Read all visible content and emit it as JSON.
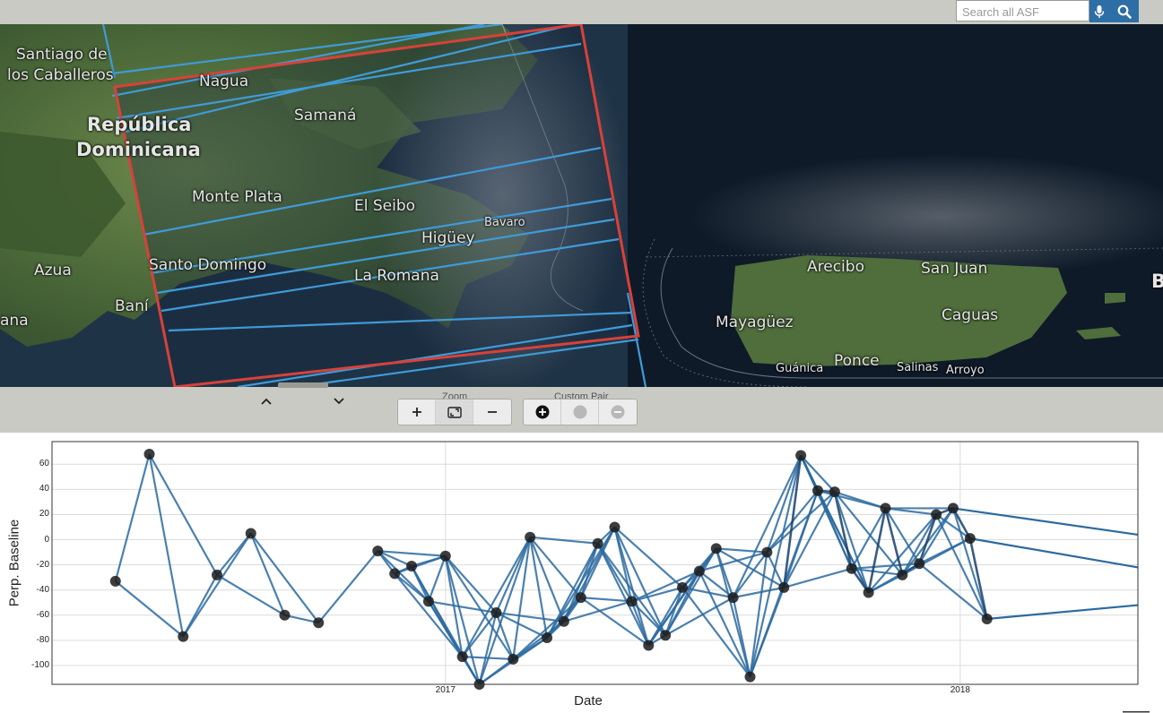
{
  "search": {
    "placeholder": "Search all ASF"
  },
  "map": {
    "labels": [
      {
        "text": "Santiago de",
        "cls": ""
      },
      {
        "text": "los Caballeros",
        "cls": ""
      },
      {
        "text": "Nagua",
        "cls": ""
      },
      {
        "text": "Samaná",
        "cls": ""
      },
      {
        "text": "República",
        "cls": "bold"
      },
      {
        "text": "Dominicana",
        "cls": "bold"
      },
      {
        "text": "Monte Plata",
        "cls": ""
      },
      {
        "text": "El Seibo",
        "cls": ""
      },
      {
        "text": "Bavaro",
        "cls": "small"
      },
      {
        "text": "Higüey",
        "cls": ""
      },
      {
        "text": "Azua",
        "cls": ""
      },
      {
        "text": "Santo Domingo",
        "cls": ""
      },
      {
        "text": "La Romana",
        "cls": ""
      },
      {
        "text": "ana",
        "cls": ""
      },
      {
        "text": "Baní",
        "cls": ""
      },
      {
        "text": "Arecibo",
        "cls": ""
      },
      {
        "text": "San Juan",
        "cls": ""
      },
      {
        "text": "Mayagüez",
        "cls": ""
      },
      {
        "text": "Caguas",
        "cls": ""
      },
      {
        "text": "Guánica",
        "cls": "small"
      },
      {
        "text": "Ponce",
        "cls": ""
      },
      {
        "text": "Salinas",
        "cls": "small"
      },
      {
        "text": "Arroyo",
        "cls": "small"
      },
      {
        "text": "B",
        "cls": "bold"
      }
    ]
  },
  "controls": {
    "zoom_label": "Zoom",
    "custom_pair_label": "Custom Pair",
    "icons": {
      "scroll_up": "chevron-up-icon",
      "scroll_down": "chevron-down-icon",
      "zoom_in": "plus-icon",
      "zoom_extent": "fit-extent-icon",
      "zoom_out": "minus-icon",
      "add_pair": "plus-circle-icon",
      "pair_point": "circle-icon",
      "remove_pair": "minus-circle-icon"
    }
  },
  "chart_data": {
    "type": "scatter",
    "xlabel": "Date",
    "ylabel": "Perp. Baseline",
    "ylim": [
      -115,
      78
    ],
    "xlim": [
      "2016-03-28",
      "2018-05-07"
    ],
    "y_ticks": [
      60,
      40,
      20,
      0,
      -20,
      -40,
      -60,
      -80,
      -100
    ],
    "x_ticks": [
      "2017",
      "2018"
    ],
    "grid": true,
    "colors": {
      "edge": "#2c6aa0",
      "node": "#1b1b1b"
    },
    "points": [
      {
        "date": "2016-05-12",
        "y": -33
      },
      {
        "date": "2016-06-05",
        "y": 68
      },
      {
        "date": "2016-06-29",
        "y": -77
      },
      {
        "date": "2016-07-23",
        "y": -28
      },
      {
        "date": "2016-08-16",
        "y": 5
      },
      {
        "date": "2016-09-09",
        "y": -60
      },
      {
        "date": "2016-10-03",
        "y": -66
      },
      {
        "date": "2016-11-14",
        "y": -9
      },
      {
        "date": "2016-11-26",
        "y": -27
      },
      {
        "date": "2016-12-08",
        "y": -21
      },
      {
        "date": "2016-12-20",
        "y": -49
      },
      {
        "date": "2017-01-01",
        "y": -13
      },
      {
        "date": "2017-01-13",
        "y": -93
      },
      {
        "date": "2017-01-25",
        "y": -115
      },
      {
        "date": "2017-02-06",
        "y": -58
      },
      {
        "date": "2017-02-18",
        "y": -95
      },
      {
        "date": "2017-03-02",
        "y": 2
      },
      {
        "date": "2017-03-14",
        "y": -78
      },
      {
        "date": "2017-03-26",
        "y": -65
      },
      {
        "date": "2017-04-07",
        "y": -46
      },
      {
        "date": "2017-04-19",
        "y": -3
      },
      {
        "date": "2017-05-01",
        "y": 10
      },
      {
        "date": "2017-05-13",
        "y": -49
      },
      {
        "date": "2017-05-25",
        "y": -84
      },
      {
        "date": "2017-06-06",
        "y": -76
      },
      {
        "date": "2017-06-18",
        "y": -38
      },
      {
        "date": "2017-06-30",
        "y": -25
      },
      {
        "date": "2017-07-12",
        "y": -7
      },
      {
        "date": "2017-07-24",
        "y": -46
      },
      {
        "date": "2017-08-05",
        "y": -109
      },
      {
        "date": "2017-08-17",
        "y": -10
      },
      {
        "date": "2017-08-29",
        "y": -38
      },
      {
        "date": "2017-09-10",
        "y": 67
      },
      {
        "date": "2017-09-22",
        "y": 39
      },
      {
        "date": "2017-10-04",
        "y": 38
      },
      {
        "date": "2017-10-16",
        "y": -23
      },
      {
        "date": "2017-10-28",
        "y": -42
      },
      {
        "date": "2017-11-09",
        "y": 25
      },
      {
        "date": "2017-11-21",
        "y": -28
      },
      {
        "date": "2017-12-03",
        "y": -19
      },
      {
        "date": "2017-12-15",
        "y": 20
      },
      {
        "date": "2017-12-27",
        "y": 25
      },
      {
        "date": "2018-01-08",
        "y": 1
      },
      {
        "date": "2018-01-20",
        "y": -63
      }
    ]
  }
}
